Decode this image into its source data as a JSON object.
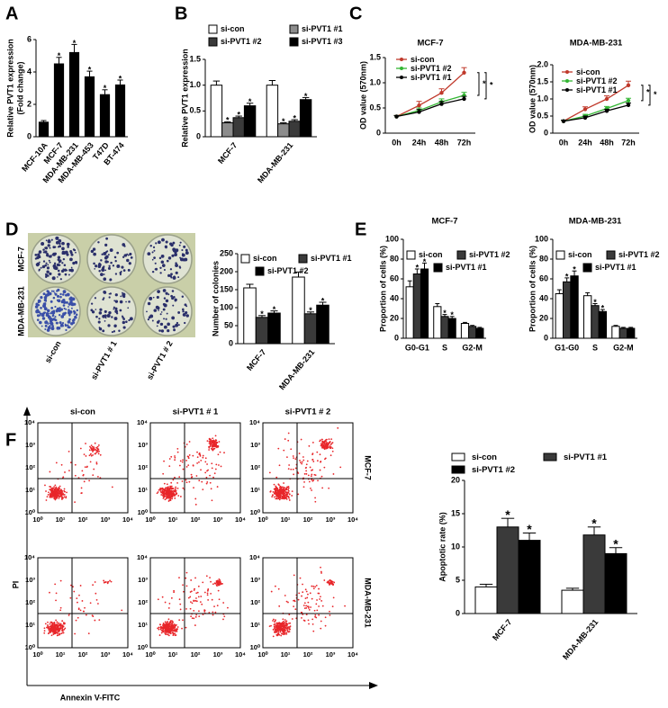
{
  "panel_labels": [
    "A",
    "B",
    "C",
    "D",
    "E",
    "F"
  ],
  "plates": {
    "row_labels": [
      "MCF-7",
      "MDA-MB-231"
    ],
    "column_labels": [
      "si-con",
      "si-PVT1 # 1",
      "si-PVT1 # 2"
    ]
  },
  "flow": {
    "column_titles": [
      "si-con",
      "si-PVT1 # 1",
      "si-PVT1 # 2"
    ],
    "row_labels": [
      "MCF-7",
      "MDA-MB-231"
    ],
    "tick_labels": [
      "10⁰",
      "10¹",
      "10²",
      "10³",
      "10⁴"
    ],
    "ylabel": "PI",
    "xlabel": "Annexin V-FITC"
  },
  "chart_data": [
    {
      "type": "bar",
      "ylabel": [
        "Relative PVT1 expression",
        "(Fold change)"
      ],
      "categories": [
        "MCF-10A",
        "MCF-7",
        "MDA-MB-231",
        "MDA-MB-453",
        "T47D",
        "BT-474"
      ],
      "values": [
        0.9,
        4.5,
        5.2,
        3.7,
        2.6,
        3.2
      ],
      "errors": [
        0.1,
        0.4,
        0.5,
        0.35,
        0.3,
        0.3
      ],
      "significance": [
        null,
        "*",
        "*",
        "*",
        "*",
        "*"
      ],
      "color": "#000000",
      "ylim": [
        0,
        6
      ],
      "yticks": [
        0,
        2,
        4,
        6
      ]
    },
    {
      "type": "bar",
      "ylabel": "Relative PVT1 expression",
      "categories": [
        "MCF-7",
        "MDA-MB-231"
      ],
      "series": [
        {
          "name": "si-con",
          "color": "#ffffff",
          "values": [
            1.0,
            1.0
          ],
          "errors": [
            0.08,
            0.09
          ],
          "significance": [
            null,
            null
          ]
        },
        {
          "name": "si-PVT1 #1",
          "color": "#8c8c8c",
          "values": [
            0.27,
            0.25
          ],
          "errors": [
            0.02,
            0.02
          ],
          "significance": [
            "*",
            "*"
          ]
        },
        {
          "name": "si-PVT1 #2",
          "color": "#3a3a3a",
          "values": [
            0.37,
            0.3
          ],
          "errors": [
            0.03,
            0.03
          ],
          "significance": [
            "*",
            "*"
          ]
        },
        {
          "name": "si-PVT1 #3",
          "color": "#000000",
          "values": [
            0.6,
            0.72
          ],
          "errors": [
            0.05,
            0.04
          ],
          "significance": [
            "*",
            "*"
          ]
        }
      ],
      "ylim": [
        0,
        1.5
      ],
      "yticks": [
        0,
        0.5,
        {
          "value": 1,
          "label": "1.0"
        },
        1.5
      ]
    },
    {
      "type": "line",
      "title": "MCF-7",
      "ylabel": "OD value (570nm)",
      "categories": [
        "0h",
        "24h",
        "48h",
        "72h"
      ],
      "series": [
        {
          "name": "si-con",
          "color": "#c0392b",
          "values": [
            0.33,
            0.55,
            0.8,
            1.2
          ],
          "errors": [
            0.02,
            0.08,
            0.08,
            0.1
          ]
        },
        {
          "name": "si-PVT1 #2",
          "color": "#33b633",
          "values": [
            0.33,
            0.45,
            0.62,
            0.75
          ],
          "errors": [
            0.02,
            0.05,
            0.06,
            0.06
          ]
        },
        {
          "name": "si-PVT1 #1",
          "color": "#000000",
          "values": [
            0.33,
            0.42,
            0.58,
            0.68
          ],
          "errors": [
            0.02,
            0.05,
            0.05,
            0.05
          ]
        }
      ],
      "comparisons": [
        "*",
        "*"
      ],
      "ylim": [
        0,
        1.5
      ],
      "yticks": [
        0,
        0.5,
        {
          "value": 1,
          "label": "1.0"
        },
        1.5
      ]
    },
    {
      "type": "line",
      "title": "MDA-MB-231",
      "ylabel": "OD value (570nm)",
      "categories": [
        "0h",
        "24h",
        "48h",
        "72h"
      ],
      "series": [
        {
          "name": "si-con",
          "color": "#c0392b",
          "values": [
            0.35,
            0.7,
            1.0,
            1.4
          ],
          "errors": [
            0.03,
            0.07,
            0.09,
            0.12
          ]
        },
        {
          "name": "si-PVT1 #2",
          "color": "#33b633",
          "values": [
            0.35,
            0.5,
            0.72,
            0.95
          ],
          "errors": [
            0.03,
            0.05,
            0.06,
            0.07
          ]
        },
        {
          "name": "si-PVT1 #1",
          "color": "#000000",
          "values": [
            0.35,
            0.45,
            0.65,
            0.82
          ],
          "errors": [
            0.03,
            0.05,
            0.05,
            0.06
          ]
        }
      ],
      "comparisons": [
        "*",
        "*"
      ],
      "ylim": [
        0,
        2
      ],
      "yticks": [
        0,
        0.5,
        {
          "value": 1,
          "label": "1.0"
        },
        1.5,
        {
          "value": 2,
          "label": "2.0"
        }
      ]
    },
    {
      "type": "bar",
      "ylabel": "Number of colonies",
      "categories": [
        "MCF-7",
        "MDA-MB-231"
      ],
      "series": [
        {
          "name": "si-con",
          "color": "#ffffff",
          "values": [
            155,
            185
          ],
          "errors": [
            10,
            14
          ],
          "significance": [
            null,
            null
          ]
        },
        {
          "name": "si-PVT1 #1",
          "color": "#3a3a3a",
          "values": [
            73,
            83
          ],
          "errors": [
            5,
            5
          ],
          "significance": [
            "*",
            "*"
          ]
        },
        {
          "name": "si-PVT1 #2",
          "color": "#000000",
          "values": [
            85,
            107
          ],
          "errors": [
            6,
            8
          ],
          "significance": [
            "*",
            "*"
          ]
        }
      ],
      "ylim": [
        0,
        250
      ],
      "yticks": [
        0,
        50,
        100,
        150,
        200,
        250
      ]
    },
    {
      "type": "bar",
      "title": "MCF-7",
      "ylabel": "Proportion of cells (%)",
      "categories": [
        "G0-G1",
        "S",
        "G2-M"
      ],
      "series": [
        {
          "name": "si-con",
          "color": "#ffffff",
          "values": [
            52,
            32,
            15
          ],
          "errors": [
            6,
            3,
            1
          ],
          "significance": [
            null,
            null,
            null
          ]
        },
        {
          "name": "si-PVT1 #2",
          "color": "#3a3a3a",
          "values": [
            65,
            22,
            12
          ],
          "errors": [
            5,
            2,
            1
          ],
          "significance": [
            "*",
            "*",
            null
          ]
        },
        {
          "name": "si-PVT1 #1",
          "color": "#000000",
          "values": [
            70,
            20,
            10
          ],
          "errors": [
            6,
            2,
            1
          ],
          "significance": [
            "*",
            "*",
            null
          ]
        }
      ],
      "ylim": [
        0,
        100
      ],
      "yticks": [
        0,
        20,
        40,
        60,
        80,
        100
      ]
    },
    {
      "type": "bar",
      "title": "MDA-MB-231",
      "ylabel": "Proportion of cells (%)",
      "categories": [
        "G1-G0",
        "S",
        "G2-M"
      ],
      "series": [
        {
          "name": "si-con",
          "color": "#ffffff",
          "values": [
            45,
            43,
            12
          ],
          "errors": [
            4,
            3,
            1
          ],
          "significance": [
            null,
            null,
            null
          ]
        },
        {
          "name": "si-PVT1 #2",
          "color": "#3a3a3a",
          "values": [
            57,
            33,
            10
          ],
          "errors": [
            4,
            2,
            1
          ],
          "significance": [
            "*",
            "*",
            null
          ]
        },
        {
          "name": "si-PVT1 #1",
          "color": "#000000",
          "values": [
            63,
            27,
            10
          ],
          "errors": [
            5,
            2,
            1
          ],
          "significance": [
            "*",
            "*",
            null
          ]
        }
      ],
      "ylim": [
        0,
        100
      ],
      "yticks": [
        0,
        20,
        40,
        60,
        80,
        100
      ]
    },
    {
      "type": "bar",
      "ylabel": "Apoptotic rate (%)",
      "categories": [
        "MCF-7",
        "MDA-MB-231"
      ],
      "series": [
        {
          "name": "si-con",
          "color": "#ffffff",
          "values": [
            4,
            3.5
          ],
          "errors": [
            0.4,
            0.3
          ],
          "significance": [
            null,
            null
          ]
        },
        {
          "name": "si-PVT1 #1",
          "color": "#3a3a3a",
          "values": [
            13,
            11.8
          ],
          "errors": [
            1.3,
            1.2
          ],
          "significance": [
            "*",
            "*"
          ]
        },
        {
          "name": "si-PVT1 #2",
          "color": "#000000",
          "values": [
            11,
            9
          ],
          "errors": [
            1.1,
            0.9
          ],
          "significance": [
            "*",
            "*"
          ]
        }
      ],
      "ylim": [
        0,
        20
      ],
      "yticks": [
        0,
        5,
        10,
        15,
        20
      ]
    }
  ]
}
